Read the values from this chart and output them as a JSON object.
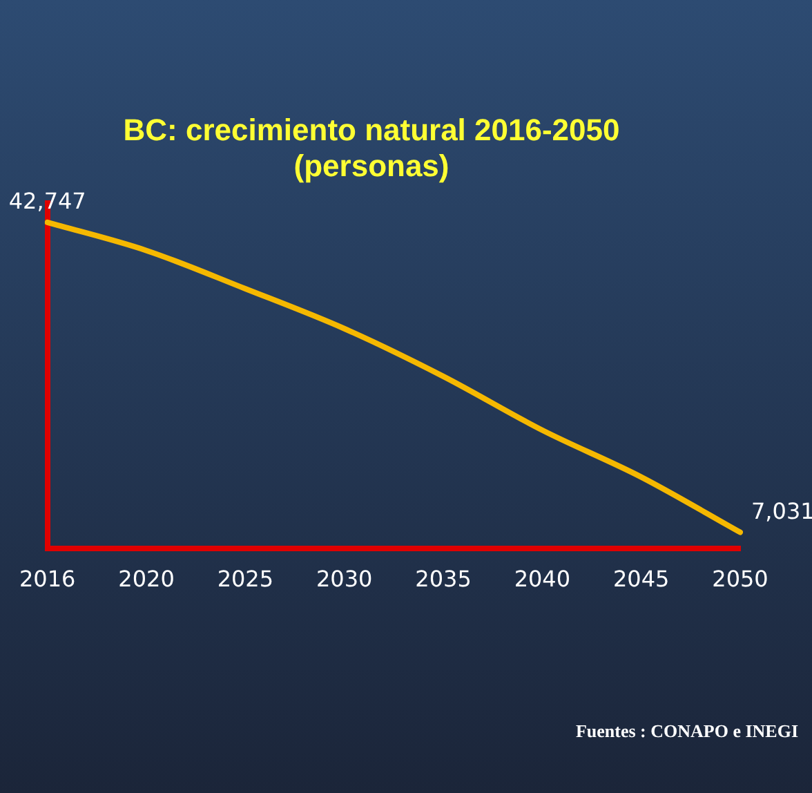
{
  "chart_data": {
    "type": "line",
    "title": "BC: crecimiento natural 2016-2050",
    "subtitle": "(personas)",
    "categories": [
      "2016",
      "2020",
      "2025",
      "2030",
      "2035",
      "2040",
      "2045",
      "2050"
    ],
    "series": [
      {
        "color": "#f5b800",
        "values": [
          42747,
          39500,
          35100,
          30500,
          25000,
          18800,
          13400,
          7031
        ],
        "value_labels": [
          "42,747",
          null,
          null,
          null,
          null,
          null,
          null,
          "7,031"
        ]
      }
    ],
    "ylim": [
      5200,
      45000
    ],
    "tick_labels": "x",
    "grid": false,
    "legend": false,
    "marker": "none",
    "line_style": "solid",
    "annotations": [
      "Fuentes : CONAPO e INEGI"
    ]
  }
}
